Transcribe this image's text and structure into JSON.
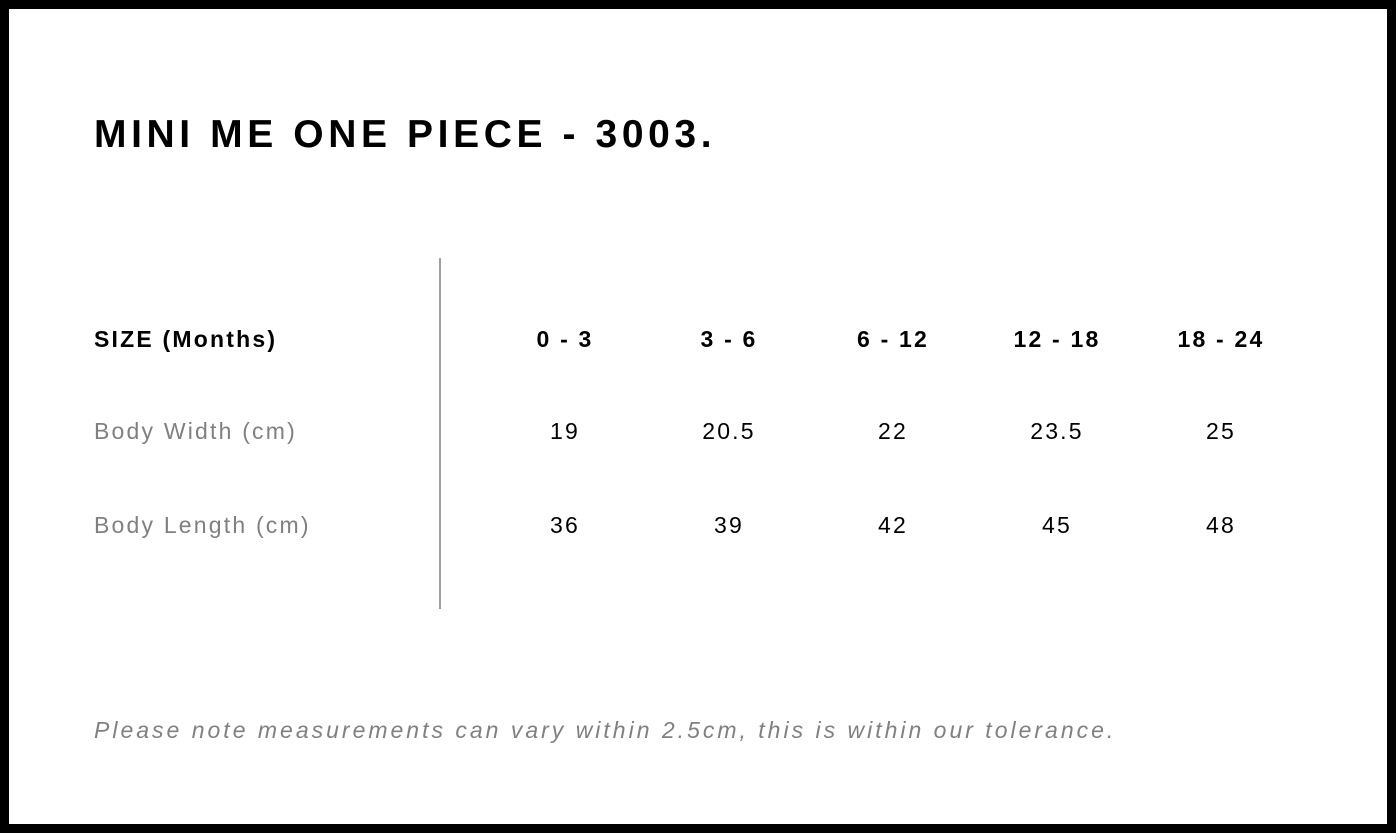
{
  "title": "MINI ME ONE PIECE - 3003.",
  "table": {
    "header": {
      "label": "SIZE (Months)",
      "cells": [
        "0 - 3",
        "3 - 6",
        "6 - 12",
        "12 - 18",
        "18 - 24"
      ]
    },
    "rows": [
      {
        "label": "Body Width (cm)",
        "cells": [
          "19",
          "20.5",
          "22",
          "23.5",
          "25"
        ]
      },
      {
        "label": "Body Length (cm)",
        "cells": [
          "36",
          "39",
          "42",
          "45",
          "48"
        ]
      }
    ]
  },
  "note": "Please note measurements can vary within 2.5cm, this is within our tolerance."
}
